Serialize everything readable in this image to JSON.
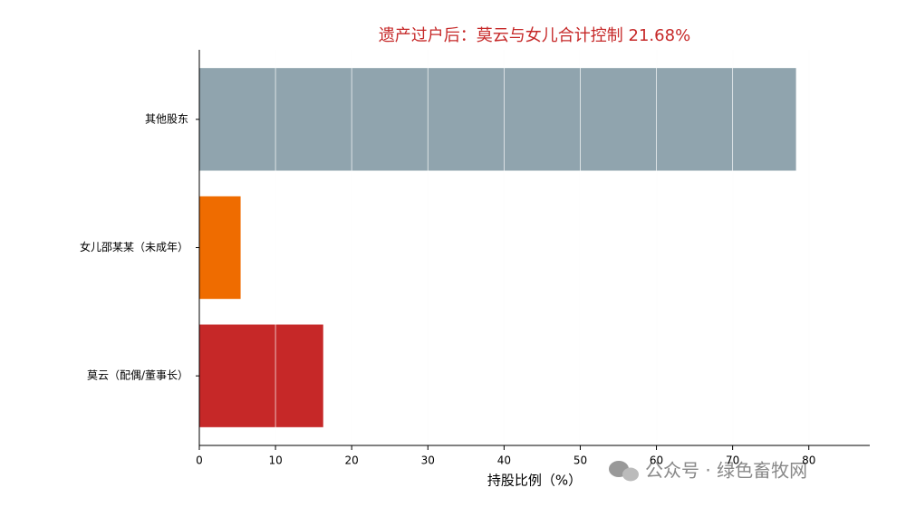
{
  "chart_data": {
    "type": "barh",
    "title": "遗产过户后：莫云与女儿合计控制 21.68%",
    "xlabel": "持股比例（%）",
    "categories": [
      "其他股东",
      "女儿邵某某（未成年）",
      "莫云（配偶/董事长）"
    ],
    "values": [
      78.32,
      5.42,
      16.26
    ],
    "colors": [
      "#90a4ae",
      "#ef6c00",
      "#c62828"
    ],
    "xlim": [
      0,
      88
    ],
    "xticks": [
      0,
      10,
      20,
      30,
      40,
      50,
      60,
      70,
      80
    ],
    "grid": true
  },
  "watermark": "公众号 · 绿色畜牧网"
}
